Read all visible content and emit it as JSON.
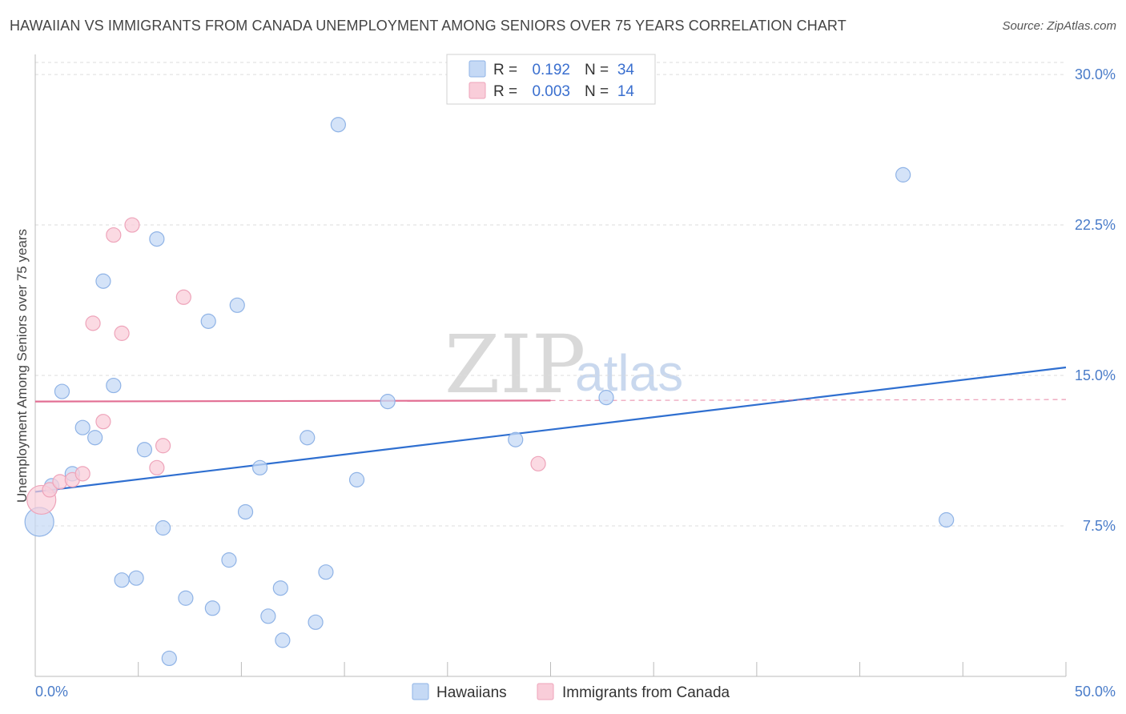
{
  "header": {
    "title": "HAWAIIAN VS IMMIGRANTS FROM CANADA UNEMPLOYMENT AMONG SENIORS OVER 75 YEARS CORRELATION CHART",
    "source": "Source: ZipAtlas.com"
  },
  "watermark": {
    "zip": "ZIP",
    "atlas": "atlas"
  },
  "colors": {
    "blue_fill": "#c5d9f5",
    "blue_stroke": "#8fb3e6",
    "blue_line": "#2f6fd0",
    "pink_fill": "#f9cdd9",
    "pink_stroke": "#eea4ba",
    "pink_line": "#e26e93",
    "grid": "#dddddd",
    "axis_text": "#4a7cc9"
  },
  "legend": {
    "rows": [
      {
        "r_label": "R =",
        "r_value": "0.192",
        "n_label": "N =",
        "n_value": "34",
        "series": "hawaiians"
      },
      {
        "r_label": "R =",
        "r_value": "0.003",
        "n_label": "N =",
        "n_value": "14",
        "series": "canada"
      }
    ]
  },
  "bottom_legend": {
    "series_a": "Hawaiians",
    "series_b": "Immigrants from Canada"
  },
  "chart_data": {
    "type": "scatter",
    "title": "HAWAIIAN VS IMMIGRANTS FROM CANADA UNEMPLOYMENT AMONG SENIORS OVER 75 YEARS CORRELATION CHART",
    "xlabel": "",
    "ylabel": "Unemployment Among Seniors over 75 years",
    "xlim": [
      0,
      50
    ],
    "ylim": [
      0,
      31
    ],
    "x_tick_labels": [
      "0.0%",
      "50.0%"
    ],
    "y_ticks": [
      7.5,
      15.0,
      22.5,
      30.0
    ],
    "y_tick_labels": [
      "7.5%",
      "15.0%",
      "22.5%",
      "30.0%"
    ],
    "series": [
      {
        "name": "Hawaiians",
        "color": "blue",
        "R": 0.192,
        "N": 34,
        "trend": {
          "x": [
            0,
            50
          ],
          "y": [
            9.2,
            15.4
          ],
          "style": "solid"
        },
        "points": [
          {
            "x": 0.2,
            "y": 7.7,
            "big": true
          },
          {
            "x": 0.8,
            "y": 9.5
          },
          {
            "x": 1.3,
            "y": 14.2
          },
          {
            "x": 1.8,
            "y": 10.1
          },
          {
            "x": 2.3,
            "y": 12.4
          },
          {
            "x": 2.9,
            "y": 11.9
          },
          {
            "x": 3.3,
            "y": 19.7
          },
          {
            "x": 3.8,
            "y": 14.5
          },
          {
            "x": 4.2,
            "y": 4.8
          },
          {
            "x": 4.9,
            "y": 4.9
          },
          {
            "x": 5.3,
            "y": 11.3
          },
          {
            "x": 5.9,
            "y": 21.8
          },
          {
            "x": 6.2,
            "y": 7.4
          },
          {
            "x": 6.5,
            "y": 0.9
          },
          {
            "x": 7.3,
            "y": 3.9
          },
          {
            "x": 8.4,
            "y": 17.7
          },
          {
            "x": 8.6,
            "y": 3.4
          },
          {
            "x": 9.4,
            "y": 5.8
          },
          {
            "x": 9.8,
            "y": 18.5
          },
          {
            "x": 10.2,
            "y": 8.2
          },
          {
            "x": 10.9,
            "y": 10.4
          },
          {
            "x": 11.3,
            "y": 3.0
          },
          {
            "x": 11.9,
            "y": 4.4
          },
          {
            "x": 12.0,
            "y": 1.8
          },
          {
            "x": 13.2,
            "y": 11.9
          },
          {
            "x": 13.6,
            "y": 2.7
          },
          {
            "x": 14.1,
            "y": 5.2
          },
          {
            "x": 15.6,
            "y": 9.8
          },
          {
            "x": 14.7,
            "y": 27.5
          },
          {
            "x": 17.1,
            "y": 13.7
          },
          {
            "x": 23.3,
            "y": 11.8
          },
          {
            "x": 27.7,
            "y": 13.9
          },
          {
            "x": 42.1,
            "y": 25.0
          },
          {
            "x": 44.2,
            "y": 7.8
          }
        ]
      },
      {
        "name": "Immigrants from Canada",
        "color": "pink",
        "R": 0.003,
        "N": 14,
        "trend": {
          "x": [
            0,
            50
          ],
          "y": [
            13.7,
            13.8
          ],
          "solid_until": 25,
          "style": "solid-then-dashed"
        },
        "points": [
          {
            "x": 0.3,
            "y": 8.8,
            "big": true
          },
          {
            "x": 0.7,
            "y": 9.3
          },
          {
            "x": 1.2,
            "y": 9.7
          },
          {
            "x": 1.8,
            "y": 9.8
          },
          {
            "x": 2.3,
            "y": 10.1
          },
          {
            "x": 2.8,
            "y": 17.6
          },
          {
            "x": 3.3,
            "y": 12.7
          },
          {
            "x": 3.8,
            "y": 22.0
          },
          {
            "x": 4.2,
            "y": 17.1
          },
          {
            "x": 4.7,
            "y": 22.5
          },
          {
            "x": 5.9,
            "y": 10.4
          },
          {
            "x": 6.2,
            "y": 11.5
          },
          {
            "x": 7.2,
            "y": 18.9
          },
          {
            "x": 24.4,
            "y": 10.6
          }
        ]
      }
    ]
  }
}
